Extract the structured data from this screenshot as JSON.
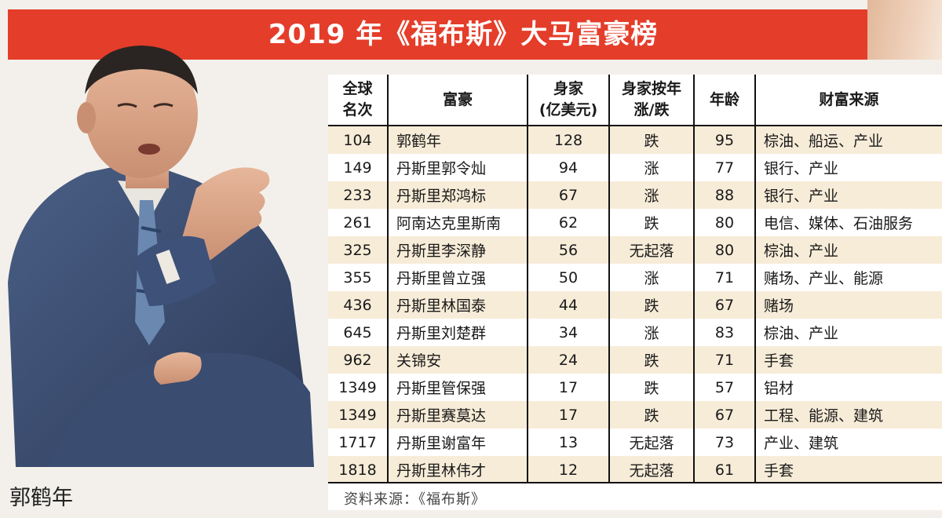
{
  "title": "2019 年《福布斯》大马富豪榜",
  "caption": "郭鹤年",
  "source": "资料来源：《福布斯》",
  "colors": {
    "banner": "#e43d2a",
    "row_highlight": "#f7ecd8"
  },
  "headers": {
    "rank_line1": "全球",
    "rank_line2": "名次",
    "name": "富豪",
    "worth_line1": "身家",
    "worth_line2": "(亿美元)",
    "change_line1": "身家按年",
    "change_line2": "涨/跌",
    "age": "年龄",
    "source": "财富来源"
  },
  "rows": [
    {
      "rank": "104",
      "name": "郭鹤年",
      "worth": "128",
      "change": "跌",
      "age": "95",
      "source": "棕油、船运、产业"
    },
    {
      "rank": "149",
      "name": "丹斯里郭令灿",
      "worth": "94",
      "change": "涨",
      "age": "77",
      "source": "银行、产业"
    },
    {
      "rank": "233",
      "name": "丹斯里郑鸿标",
      "worth": "67",
      "change": "涨",
      "age": "88",
      "source": "银行、产业"
    },
    {
      "rank": "261",
      "name": "阿南达克里斯南",
      "worth": "62",
      "change": "跌",
      "age": "80",
      "source": "电信、媒体、石油服务"
    },
    {
      "rank": "325",
      "name": "丹斯里李深静",
      "worth": "56",
      "change": "无起落",
      "age": "80",
      "source": "棕油、产业"
    },
    {
      "rank": "355",
      "name": "丹斯里曾立强",
      "worth": "50",
      "change": "涨",
      "age": "71",
      "source": "赌场、产业、能源"
    },
    {
      "rank": "436",
      "name": "丹斯里林国泰",
      "worth": "44",
      "change": "跌",
      "age": "67",
      "source": "赌场"
    },
    {
      "rank": "645",
      "name": "丹斯里刘楚群",
      "worth": "34",
      "change": "涨",
      "age": "83",
      "source": "棕油、产业"
    },
    {
      "rank": "962",
      "name": "关锦安",
      "worth": "24",
      "change": "跌",
      "age": "71",
      "source": "手套"
    },
    {
      "rank": "1349",
      "name": "丹斯里管保强",
      "worth": "17",
      "change": "跌",
      "age": "57",
      "source": "铝材"
    },
    {
      "rank": "1349",
      "name": "丹斯里赛莫达",
      "worth": "17",
      "change": "跌",
      "age": "67",
      "source": "工程、能源、建筑"
    },
    {
      "rank": "1717",
      "name": "丹斯里谢富年",
      "worth": "13",
      "change": "无起落",
      "age": "73",
      "source": "产业、建筑"
    },
    {
      "rank": "1818",
      "name": "丹斯里林伟才",
      "worth": "12",
      "change": "无起落",
      "age": "61",
      "source": "手套"
    }
  ]
}
